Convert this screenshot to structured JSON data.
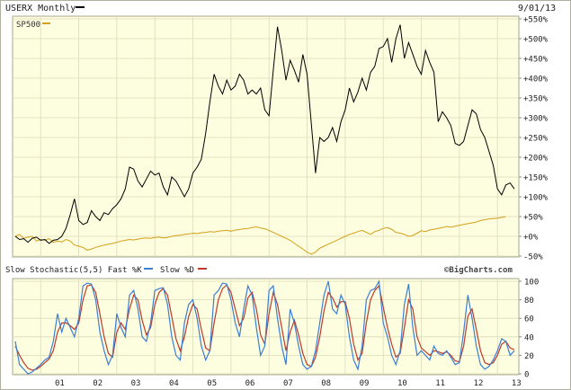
{
  "header": {
    "title": "USERX Monthly",
    "date": "9/01/13"
  },
  "legend": {
    "benchmark": "SP500"
  },
  "stoch_header": {
    "title": "Slow Stochastic(5,5) Fast %K",
    "slow_label": "Slow %D"
  },
  "watermark": "©BigCharts.com",
  "colors": {
    "price": "#000000",
    "benchmark": "#d4a017",
    "fastK": "#3a7fd5",
    "slowD": "#c0392b",
    "panel_bg": "#fdfde0",
    "grid": "#dcdcb8"
  },
  "chart_data": [
    {
      "type": "line",
      "title": "USERX Monthly",
      "yunit": "% change",
      "ylim": [
        -50,
        550
      ],
      "yticks": [
        "+550%",
        "+500%",
        "+450%",
        "+400%",
        "+350%",
        "+300%",
        "+250%",
        "+200%",
        "+150%",
        "+100%",
        "+50%",
        "+0%",
        "-50%"
      ],
      "ytick_values": [
        550,
        500,
        450,
        400,
        350,
        300,
        250,
        200,
        150,
        100,
        50,
        0,
        -50
      ],
      "x_start": "2000-09",
      "x_end": "2013-09",
      "series": [
        {
          "name": "USERX",
          "values": [
            0,
            -8,
            -6,
            -15,
            -5,
            -2,
            -10,
            -8,
            -18,
            -10,
            -8,
            0,
            20,
            55,
            95,
            40,
            30,
            35,
            65,
            50,
            40,
            60,
            55,
            70,
            80,
            95,
            120,
            175,
            170,
            140,
            125,
            145,
            165,
            155,
            160,
            125,
            105,
            150,
            140,
            120,
            100,
            120,
            160,
            175,
            195,
            260,
            340,
            410,
            380,
            360,
            395,
            370,
            380,
            410,
            395,
            360,
            370,
            360,
            375,
            320,
            305,
            420,
            530,
            470,
            395,
            445,
            420,
            390,
            460,
            410,
            285,
            160,
            250,
            240,
            250,
            275,
            240,
            290,
            320,
            375,
            340,
            365,
            400,
            370,
            415,
            430,
            475,
            480,
            500,
            440,
            500,
            535,
            450,
            490,
            460,
            430,
            410,
            470,
            440,
            415,
            290,
            315,
            300,
            280,
            235,
            230,
            240,
            280,
            320,
            310,
            270,
            250,
            215,
            180,
            120,
            105,
            130,
            135,
            120
          ]
        },
        {
          "name": "SP500",
          "values": [
            0,
            5,
            -5,
            -2,
            0,
            -12,
            -8,
            -10,
            -6,
            -15,
            -12,
            -14,
            -8,
            -12,
            -22,
            -25,
            -28,
            -35,
            -32,
            -28,
            -25,
            -22,
            -20,
            -18,
            -15,
            -12,
            -10,
            -8,
            -9,
            -7,
            -5,
            -4,
            -5,
            -3,
            -2,
            -4,
            -3,
            0,
            2,
            3,
            5,
            6,
            8,
            7,
            9,
            10,
            12,
            11,
            13,
            14,
            15,
            13,
            16,
            17,
            19,
            20,
            22,
            24,
            21,
            19,
            15,
            10,
            5,
            0,
            -5,
            -10,
            -18,
            -25,
            -32,
            -40,
            -45,
            -40,
            -30,
            -25,
            -20,
            -15,
            -10,
            -5,
            0,
            5,
            8,
            12,
            15,
            10,
            5,
            12,
            15,
            20,
            22,
            18,
            10,
            8,
            5,
            0,
            2,
            8,
            14,
            12,
            16,
            18,
            20,
            22,
            25,
            23,
            26,
            28,
            30,
            32,
            34,
            36,
            40,
            42,
            44,
            45,
            46,
            48,
            50
          ]
        }
      ]
    },
    {
      "type": "line",
      "title": "Slow Stochastic(5,5)",
      "ylim": [
        0,
        100
      ],
      "yticks": [
        "100",
        "80",
        "60",
        "40",
        "20",
        "0"
      ],
      "ytick_values": [
        100,
        80,
        60,
        40,
        20,
        0
      ],
      "x_start": "2000-09",
      "x_end": "2013-09",
      "xticks": [
        "01",
        "02",
        "03",
        "04",
        "05",
        "06",
        "07",
        "08",
        "09",
        "10",
        "11",
        "12",
        "13"
      ],
      "series": [
        {
          "name": "Fast %K",
          "values": [
            35,
            10,
            5,
            0,
            2,
            6,
            10,
            15,
            18,
            35,
            65,
            45,
            60,
            50,
            40,
            60,
            95,
            98,
            97,
            80,
            45,
            25,
            10,
            20,
            65,
            50,
            40,
            85,
            90,
            70,
            40,
            35,
            55,
            90,
            92,
            93,
            75,
            40,
            20,
            15,
            55,
            75,
            80,
            60,
            30,
            15,
            25,
            85,
            90,
            98,
            97,
            80,
            55,
            40,
            70,
            95,
            85,
            50,
            20,
            30,
            90,
            95,
            60,
            30,
            10,
            70,
            55,
            30,
            10,
            5,
            8,
            25,
            55,
            85,
            100,
            70,
            65,
            85,
            75,
            40,
            15,
            5,
            30,
            80,
            90,
            92,
            100,
            55,
            40,
            20,
            10,
            25,
            75,
            97,
            50,
            20,
            25,
            20,
            15,
            30,
            22,
            20,
            25,
            18,
            10,
            12,
            45,
            85,
            60,
            30,
            10,
            5,
            8,
            15,
            25,
            38,
            35,
            20,
            25
          ]
        },
        {
          "name": "Slow %D",
          "values": [
            30,
            20,
            12,
            6,
            4,
            5,
            8,
            12,
            16,
            25,
            45,
            55,
            55,
            52,
            48,
            55,
            80,
            95,
            96,
            88,
            65,
            40,
            22,
            18,
            45,
            55,
            48,
            70,
            85,
            80,
            58,
            42,
            50,
            75,
            88,
            92,
            85,
            62,
            38,
            25,
            40,
            62,
            75,
            70,
            48,
            28,
            25,
            55,
            80,
            92,
            96,
            88,
            70,
            52,
            60,
            82,
            88,
            70,
            42,
            32,
            65,
            88,
            75,
            50,
            25,
            45,
            58,
            42,
            22,
            10,
            8,
            18,
            40,
            68,
            88,
            82,
            72,
            78,
            78,
            60,
            32,
            15,
            22,
            55,
            80,
            90,
            95,
            72,
            50,
            32,
            18,
            22,
            50,
            80,
            70,
            40,
            28,
            24,
            20,
            25,
            24,
            22,
            24,
            20,
            14,
            13,
            30,
            62,
            70,
            48,
            25,
            12,
            10,
            12,
            20,
            32,
            35,
            28,
            26
          ]
        }
      ]
    }
  ]
}
